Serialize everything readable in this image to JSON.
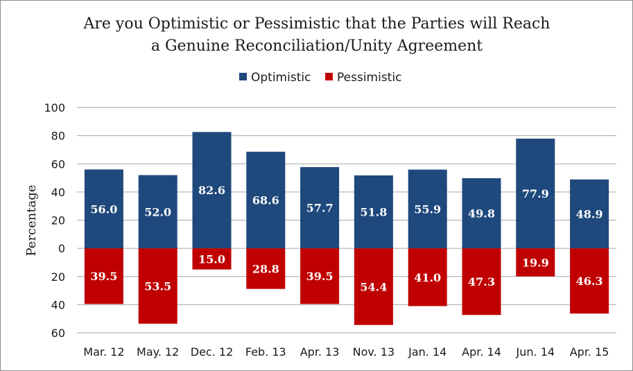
{
  "chart_data": {
    "type": "bar",
    "title_line1": "Are you Optimistic or Pessimistic that the Parties will Reach",
    "title_line2": "a Genuine Reconciliation/Unity Agreement",
    "ylabel": "Percentage",
    "xlabel": "",
    "categories": [
      "Mar. 12",
      "May. 12",
      "Dec. 12",
      "Feb. 13",
      "Apr. 13",
      "Nov. 13",
      "Jan. 14",
      "Apr. 14",
      "Jun. 14",
      "Apr. 15"
    ],
    "series": [
      {
        "name": "Optimistic",
        "color": "#1f497d",
        "direction": "up",
        "values": [
          56.0,
          52.0,
          82.6,
          68.6,
          57.7,
          51.8,
          55.9,
          49.8,
          77.9,
          48.9
        ],
        "labels": [
          "56.0",
          "52.0",
          "82.6",
          "68.6",
          "57.7",
          "51.8",
          "55.9",
          "49.8",
          "77.9",
          "48.9"
        ]
      },
      {
        "name": "Pessimistic",
        "color": "#c00000",
        "direction": "down",
        "values": [
          39.5,
          53.5,
          15.0,
          28.8,
          39.5,
          54.4,
          41.0,
          47.3,
          19.9,
          46.3
        ],
        "labels": [
          "39.5",
          "53.5",
          "15.0",
          "28.8",
          "39.5",
          "54.4",
          "41.0",
          "47.3",
          "19.9",
          "46.3"
        ]
      }
    ],
    "ylim": [
      -60,
      100
    ],
    "yticks": [
      100,
      80,
      60,
      40,
      20,
      0,
      -20,
      -40,
      -60
    ],
    "ytick_labels": [
      "100",
      "80",
      "60",
      "40",
      "20",
      "0",
      "20",
      "40",
      "60"
    ],
    "grid": true,
    "legend_position": "top-center",
    "gridline_color": "#a6a6a6"
  }
}
